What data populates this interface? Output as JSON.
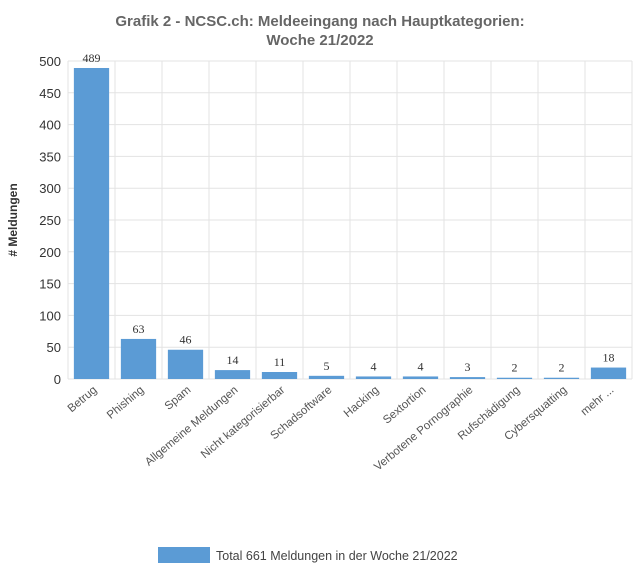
{
  "chart_data": {
    "type": "bar",
    "title_line1": "Grafik 2 - NCSC.ch: Meldeeingang nach Hauptkategorien:",
    "title_line2": "Woche 21/2022",
    "ylabel": "# Meldungen",
    "xlabel": "",
    "ylim": [
      0,
      500
    ],
    "yticks": [
      0,
      50,
      100,
      150,
      200,
      250,
      300,
      350,
      400,
      450,
      500
    ],
    "grid": true,
    "legend_position": "bottom",
    "categories": [
      "Betrug",
      "Phishing",
      "Spam",
      "Allgemeine Meldungen",
      "Nicht kategorisierbar",
      "Schadsoftware",
      "Hacking",
      "Sextortion",
      "Verbotene Pornographie",
      "Rufschädigung",
      "Cybersquatting",
      "mehr ..."
    ],
    "series": [
      {
        "name": "Total 661 Meldungen in der Woche 21/2022",
        "color": "#5b9bd5",
        "values": [
          489,
          63,
          46,
          14,
          11,
          5,
          4,
          4,
          3,
          2,
          2,
          18
        ]
      }
    ]
  }
}
